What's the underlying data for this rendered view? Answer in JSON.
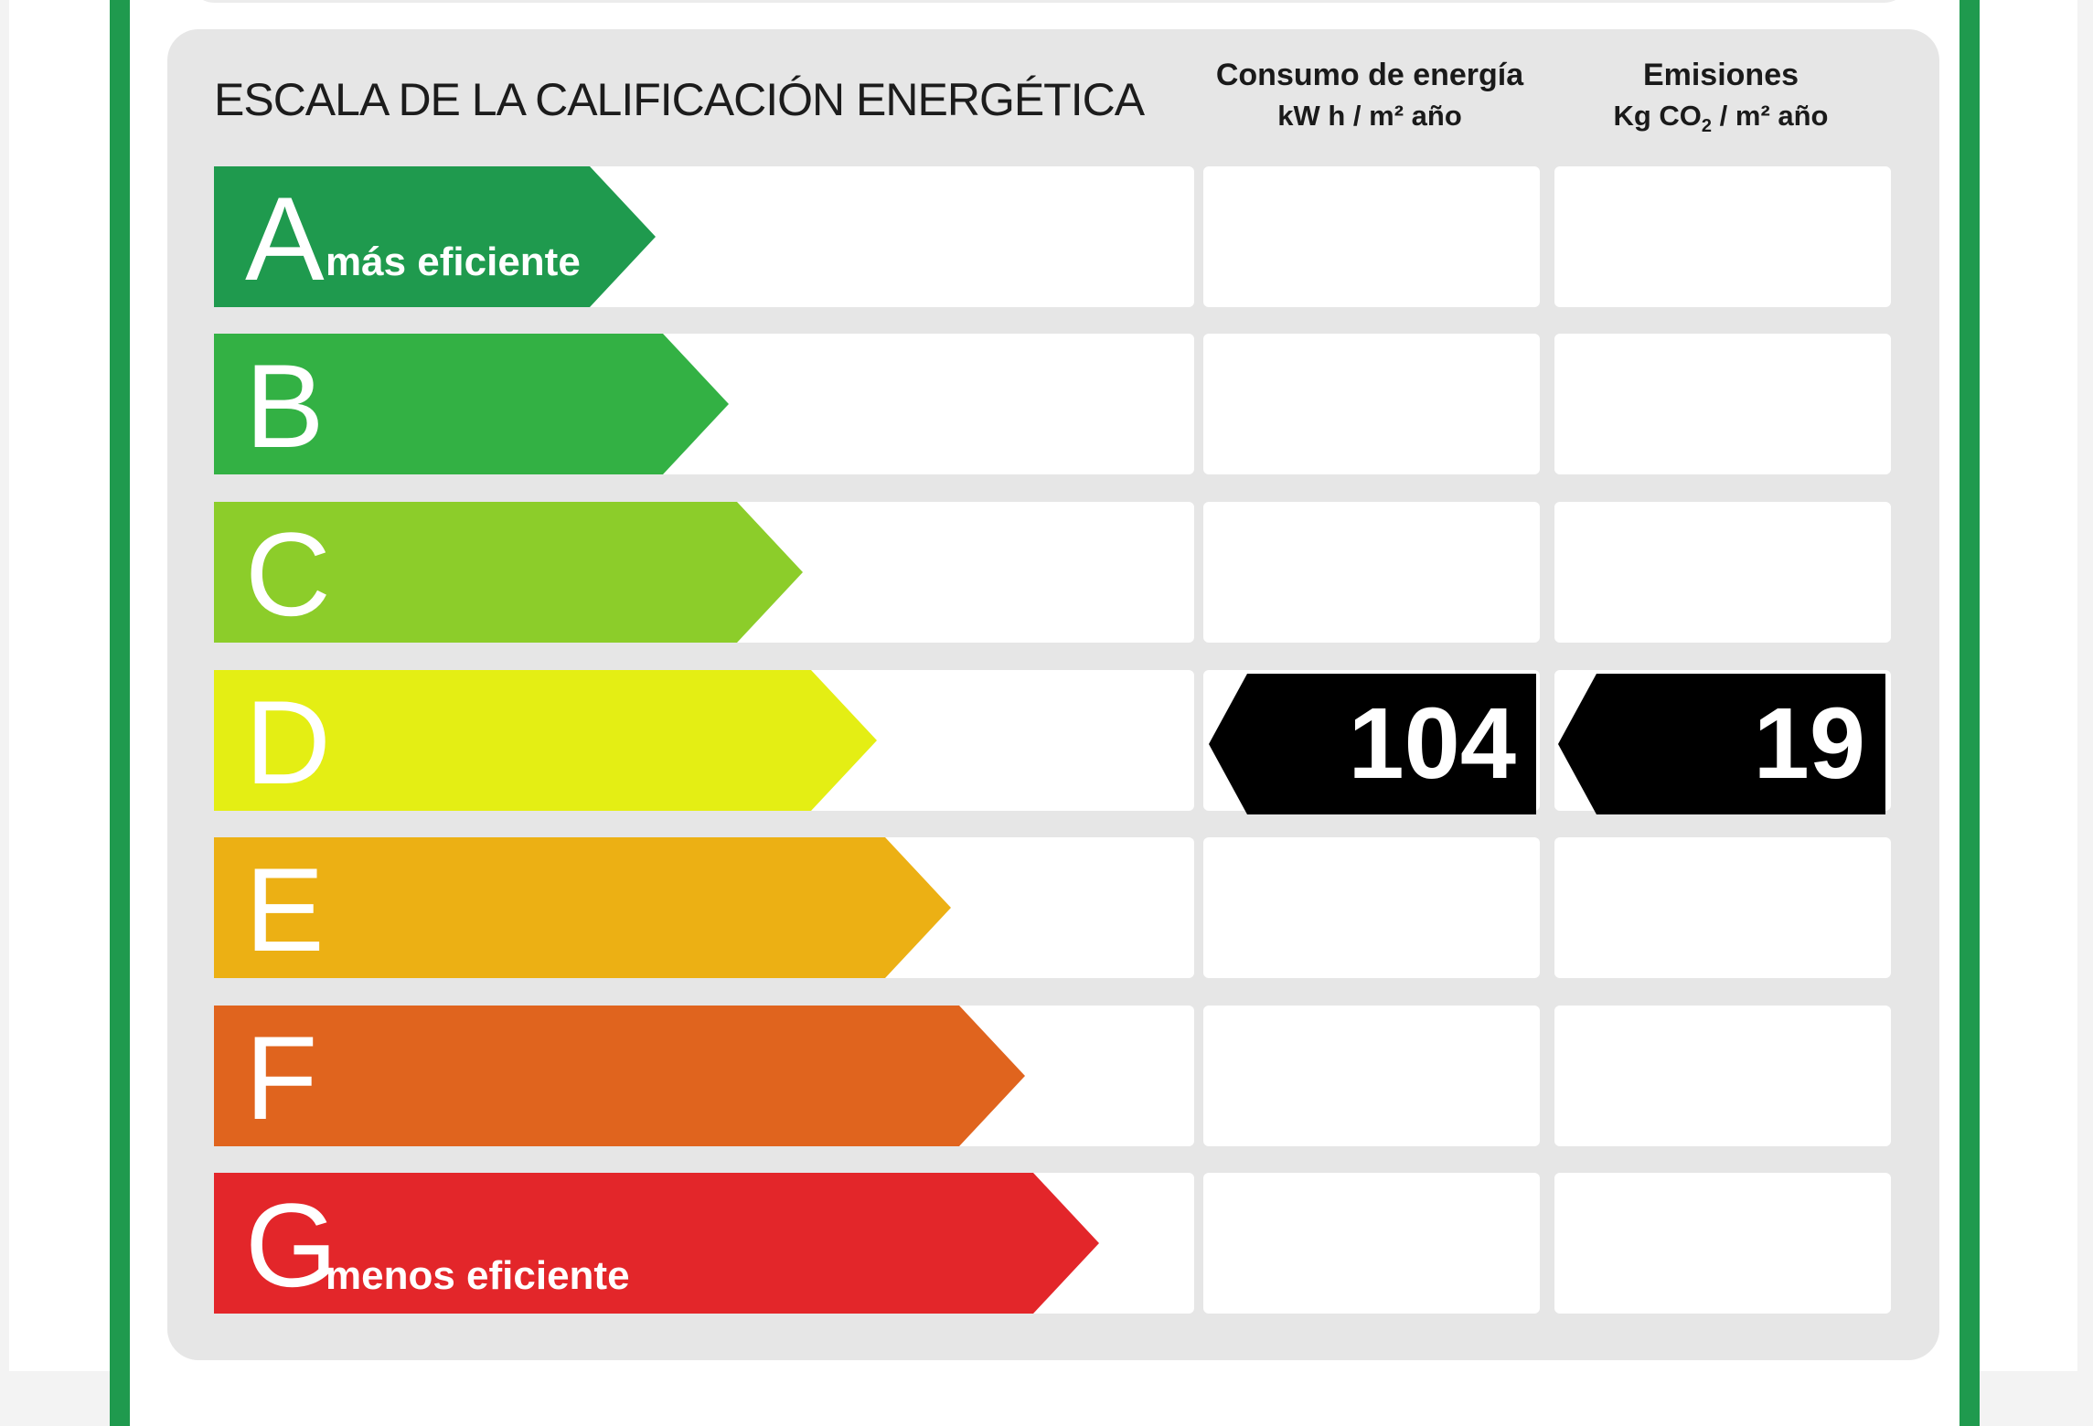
{
  "label": {
    "title": "ESCALA DE LA CALIFICACIÓN ENERGÉTICA",
    "energy_header": {
      "line1": "Consumo de energía",
      "line2": "kW h / m² año"
    },
    "emissions_header": {
      "line1": "Emisiones",
      "line2_prefix": "Kg CO",
      "line2_sub": "2",
      "line2_suffix": " / m² año"
    },
    "classes": [
      {
        "letter": "A",
        "description": "más eficiente",
        "color": "#1f9a4e"
      },
      {
        "letter": "B",
        "description": "",
        "color": "#33b144"
      },
      {
        "letter": "C",
        "description": "",
        "color": "#8ccd2a"
      },
      {
        "letter": "D",
        "description": "",
        "color": "#e4ee14"
      },
      {
        "letter": "E",
        "description": "",
        "color": "#ecb014"
      },
      {
        "letter": "F",
        "description": "",
        "color": "#e0641e"
      },
      {
        "letter": "G",
        "description": "menos eficiente",
        "color": "#e3262a"
      }
    ],
    "rating": {
      "class": "D",
      "energy_value": "104",
      "emissions_value": "19",
      "marker_color": "#000000"
    }
  }
}
